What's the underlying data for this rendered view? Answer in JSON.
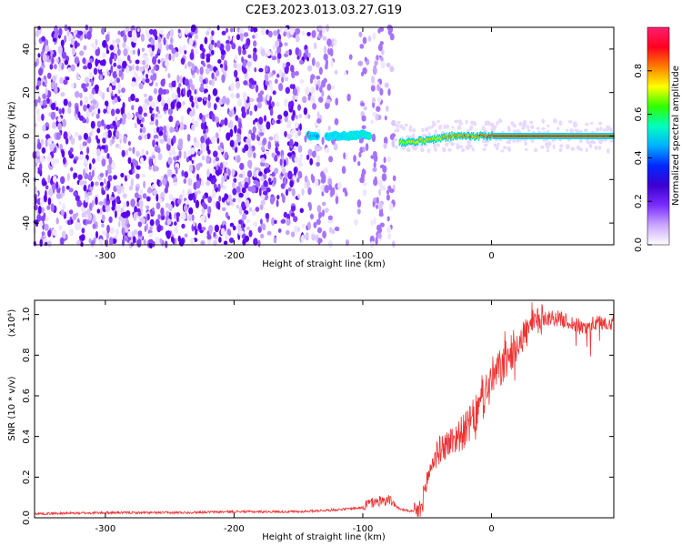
{
  "title": "C2E3.2023.013.03.27.G19",
  "chart_data": [
    {
      "type": "heatmap",
      "name": "spectrogram",
      "xlabel": "Height of straight line (km)",
      "ylabel": "Frequency (Hz)",
      "xlim": [
        -355,
        95
      ],
      "ylim": [
        -50,
        50
      ],
      "x_ticks": [
        -300,
        -200,
        -100,
        0
      ],
      "y_ticks": [
        -40,
        -20,
        0,
        20,
        40
      ],
      "colorbar": {
        "label": "Normalized spectral amplitude",
        "range": [
          0.0,
          1.0
        ],
        "ticks": [
          0.0,
          0.2,
          0.4,
          0.6,
          0.8
        ],
        "colormap": [
          "#ffffff",
          "#c9a6ff",
          "#7a2cff",
          "#3c00d0",
          "#0028ff",
          "#00b0ff",
          "#00ffc0",
          "#30ff00",
          "#ffff00",
          "#ff8000",
          "#ff0020",
          "#ff1f70"
        ]
      },
      "features": {
        "noise_region_km": [
          -355,
          -75
        ],
        "gap_regions_km": [
          [
            -120,
            -103
          ],
          [
            -98,
            -93
          ]
        ],
        "signal_track": [
          {
            "x": -140,
            "y": 0,
            "amp": 0.35
          },
          {
            "x": -125,
            "y": 0,
            "amp": 0.45
          },
          {
            "x": -110,
            "y": 0,
            "amp": 0.5
          },
          {
            "x": -100,
            "y": 1,
            "amp": 0.5
          },
          {
            "x": -70,
            "y": -3,
            "amp": 0.7
          },
          {
            "x": -50,
            "y": -2,
            "amp": 0.75
          },
          {
            "x": -30,
            "y": 0,
            "amp": 0.8
          },
          {
            "x": -10,
            "y": 0,
            "amp": 0.85
          },
          {
            "x": 0,
            "y": 0,
            "amp": 0.9
          },
          {
            "x": 50,
            "y": 0,
            "amp": 0.92
          },
          {
            "x": 95,
            "y": 0,
            "amp": 0.92
          }
        ]
      }
    },
    {
      "type": "line",
      "name": "snr",
      "xlabel": "Height of straight line (km)",
      "ylabel": "SNR (10 * v/v)",
      "y_multiplier": "(x10⁴)",
      "xlim": [
        -355,
        95
      ],
      "ylim": [
        0,
        1.07
      ],
      "x_ticks": [
        -300,
        -200,
        -100,
        0
      ],
      "y_ticks": [
        0.0,
        0.2,
        0.4,
        0.6,
        0.8,
        1.0
      ],
      "color": "#ee3333",
      "series": [
        {
          "x": [
            -355,
            -300,
            -250,
            -200,
            -150,
            -120,
            -100,
            -90,
            -80,
            -70,
            -60,
            -55,
            -50,
            -45,
            -40,
            -30,
            -20,
            -10,
            0,
            10,
            20,
            30,
            40,
            50,
            60,
            70,
            80,
            95
          ],
          "y": [
            0.02,
            0.025,
            0.025,
            0.03,
            0.03,
            0.04,
            0.05,
            0.07,
            0.08,
            0.04,
            0.03,
            0.05,
            0.2,
            0.3,
            0.35,
            0.4,
            0.45,
            0.55,
            0.7,
            0.78,
            0.88,
            0.95,
            1.0,
            1.0,
            0.98,
            0.95,
            0.97,
            0.98
          ]
        }
      ]
    }
  ]
}
